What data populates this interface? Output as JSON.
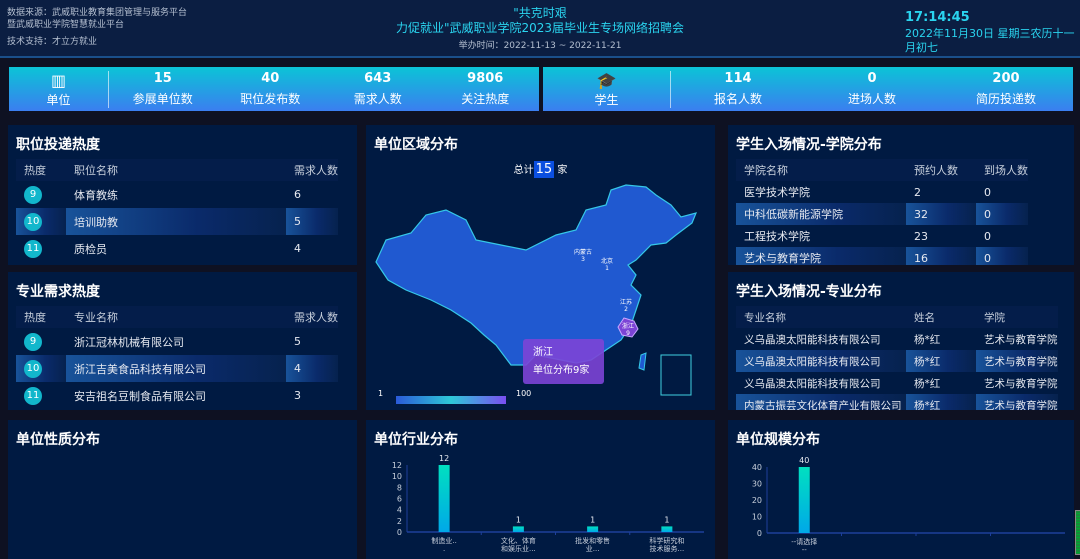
{
  "header": {
    "source": "数据来源：武威职业教育集团管理与服务平台暨武威职业学院智慧就业平台",
    "tech": "技术支持：才立方就业",
    "title1": "\"共克时艰",
    "title2": "力促就业\"武威职业学院2023届毕业生专场网络招聘会",
    "date": "举办时间：2022-11-13 ~ 2022-11-21",
    "time": "17:14:45",
    "date_full": "2022年11月30日 星期三农历十一月初七"
  },
  "stats_unit": {
    "label": "单位",
    "icon": "building-icon",
    "items": [
      {
        "value": "15",
        "label": "参展单位数"
      },
      {
        "value": "40",
        "label": "职位发布数"
      },
      {
        "value": "643",
        "label": "需求人数"
      },
      {
        "value": "9806",
        "label": "关注热度"
      }
    ]
  },
  "stats_student": {
    "label": "学生",
    "icon": "graduation-cap-icon",
    "items": [
      {
        "value": "114",
        "label": "报名人数"
      },
      {
        "value": "0",
        "label": "进场人数"
      },
      {
        "value": "200",
        "label": "简历投递数"
      }
    ]
  },
  "job_heat": {
    "title": "职位投递热度",
    "headers": [
      "热度",
      "职位名称",
      "需求人数"
    ],
    "rows": [
      [
        "9",
        "体育教练",
        "6"
      ],
      [
        "10",
        "培训助教",
        "5"
      ],
      [
        "11",
        "质检员",
        "4"
      ]
    ]
  },
  "major_heat": {
    "title": "专业需求热度",
    "headers": [
      "热度",
      "专业名称",
      "需求人数"
    ],
    "rows": [
      [
        "9",
        "浙江冠林机械有限公司",
        "5"
      ],
      [
        "10",
        "浙江吉美食品科技有限公司",
        "4"
      ],
      [
        "11",
        "安吉祖名豆制食品有限公司",
        "3"
      ]
    ]
  },
  "nature": {
    "title": "单位性质分布"
  },
  "region": {
    "title": "单位区域分布",
    "total_prefix": "总计",
    "total": "15",
    "total_suffix": "家",
    "labels": [
      {
        "name": "内蒙古",
        "value": "3"
      },
      {
        "name": "北京",
        "value": "1"
      },
      {
        "name": "江苏",
        "value": "2"
      },
      {
        "name": "浙江",
        "value": "9"
      }
    ],
    "tooltip_name": "浙江",
    "tooltip_text": "单位分布9家",
    "legend_min": "1",
    "legend_max": "100",
    "colors": {
      "land": "#2059d0",
      "highlight": "#7c44d6"
    }
  },
  "college": {
    "title": "学生入场情况-学院分布",
    "headers": [
      "学院名称",
      "预约人数",
      "到场人数"
    ],
    "rows": [
      [
        "医学技术学院",
        "2",
        "0"
      ],
      [
        "中科低碳新能源学院",
        "32",
        "0"
      ],
      [
        "工程技术学院",
        "23",
        "0"
      ],
      [
        "艺术与教育学院",
        "16",
        "0"
      ]
    ]
  },
  "major_dist": {
    "title": "学生入场情况-专业分布",
    "headers": [
      "专业名称",
      "姓名",
      "学院"
    ],
    "rows": [
      [
        "义乌晶澳太阳能科技有限公司",
        "杨*红",
        "艺术与教育学院"
      ],
      [
        "义乌晶澳太阳能科技有限公司",
        "杨*红",
        "艺术与教育学院"
      ],
      [
        "义乌晶澳太阳能科技有限公司",
        "杨*红",
        "艺术与教育学院"
      ],
      [
        "内蒙古振芸文化体育产业有限公司",
        "杨*红",
        "艺术与教育学院"
      ]
    ]
  },
  "chart_data": [
    {
      "type": "bar",
      "title": "单位行业分布",
      "categories": [
        "制造业...",
        "文化、体育和娱乐业...",
        "批发和零售业...",
        "科学研究和技术服务..."
      ],
      "values": [
        12,
        1,
        1,
        1
      ],
      "yticks": [
        0,
        2,
        4,
        6,
        8,
        10,
        12
      ],
      "ylim": [
        0,
        12
      ]
    },
    {
      "type": "bar",
      "title": "单位规模分布",
      "categories": [
        "--请选择--",
        "",
        "",
        ""
      ],
      "values": [
        40,
        null,
        null,
        null
      ],
      "yticks": [
        0,
        10,
        20,
        30,
        40
      ],
      "ylim": [
        0,
        40
      ]
    }
  ]
}
